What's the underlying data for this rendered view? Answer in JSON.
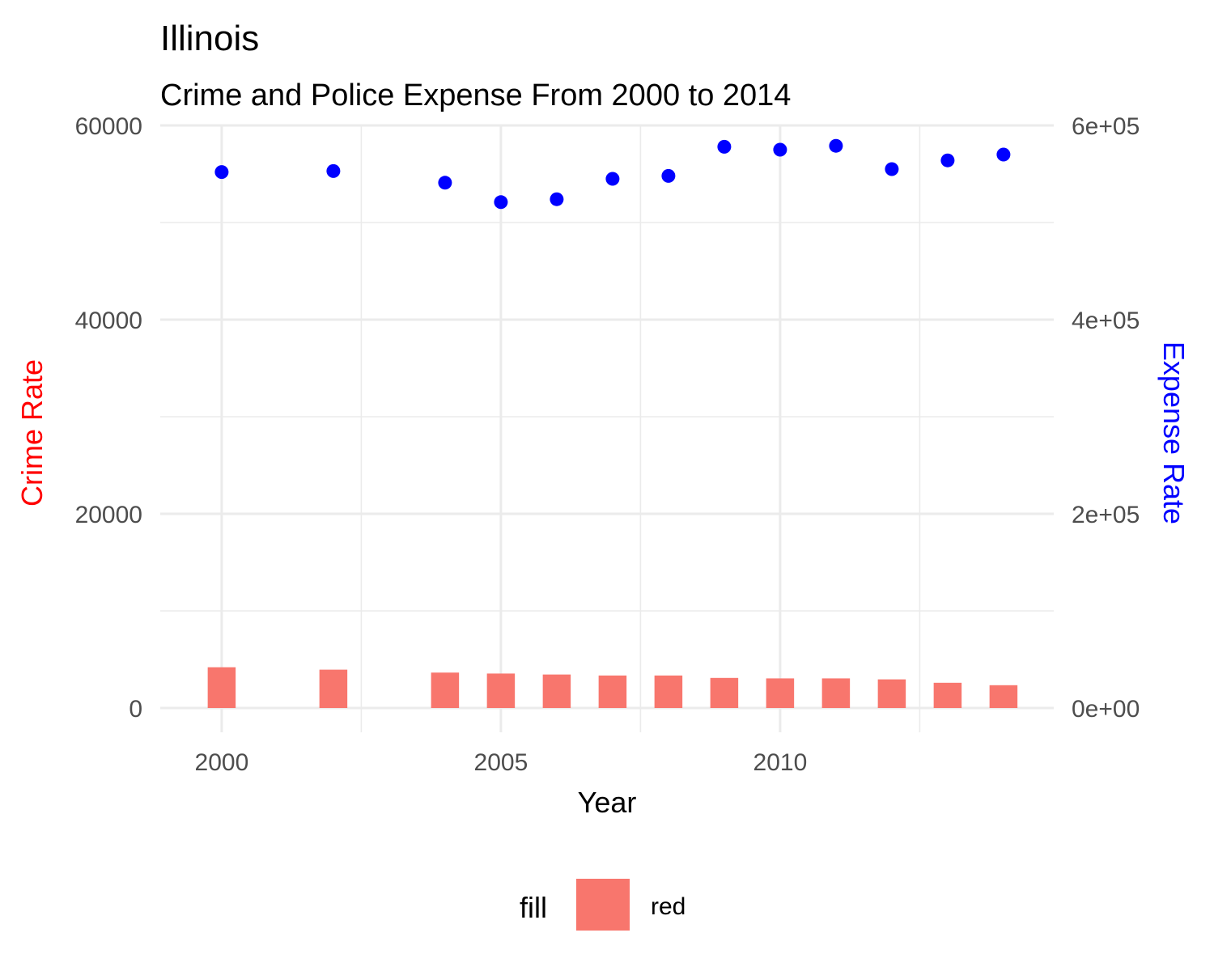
{
  "chart_data": {
    "type": "bar",
    "title": "Illinois",
    "subtitle": "Crime and Police Expense From 2000 to 2014",
    "xlabel": "Year",
    "ylabel": "Crime Rate",
    "y2label": "Expense Rate",
    "ylabel_color": "#ff0000",
    "y2label_color": "#0000ff",
    "xlim": [
      1998.9,
      2014.9
    ],
    "ylim": [
      -2500,
      60000
    ],
    "y2lim": [
      -25000,
      600000
    ],
    "x_ticks": [
      2000,
      2005,
      2010
    ],
    "x_tick_labels": [
      "2000",
      "2005",
      "2010"
    ],
    "y_ticks": [
      0,
      20000,
      40000,
      60000
    ],
    "y_tick_labels": [
      "0",
      "20000",
      "40000",
      "60000"
    ],
    "y2_ticks": [
      0,
      200000,
      400000,
      600000
    ],
    "y2_tick_labels": [
      "0e+00",
      "2e+05",
      "4e+05",
      "6e+05"
    ],
    "grid": true,
    "series": [
      {
        "name": "red",
        "kind": "bar",
        "axis": "left",
        "color": "#f8766d",
        "x": [
          2000,
          2002,
          2004,
          2005,
          2006,
          2007,
          2008,
          2009,
          2010,
          2011,
          2012,
          2013,
          2014
        ],
        "values": [
          4200,
          3950,
          3650,
          3550,
          3450,
          3350,
          3350,
          3100,
          3050,
          3050,
          2950,
          2600,
          2350
        ]
      },
      {
        "kind": "scatter",
        "axis": "right",
        "color": "#0000ff",
        "x": [
          2000,
          2002,
          2004,
          2005,
          2006,
          2007,
          2008,
          2009,
          2010,
          2011,
          2012,
          2013,
          2014
        ],
        "values": [
          552000,
          553000,
          541000,
          521000,
          524000,
          545000,
          548000,
          578000,
          575000,
          579000,
          555000,
          564000,
          570000
        ]
      }
    ],
    "legend": {
      "position": "bottom",
      "title": "fill",
      "items": [
        {
          "label": "red",
          "color": "#f8766d"
        }
      ]
    }
  }
}
